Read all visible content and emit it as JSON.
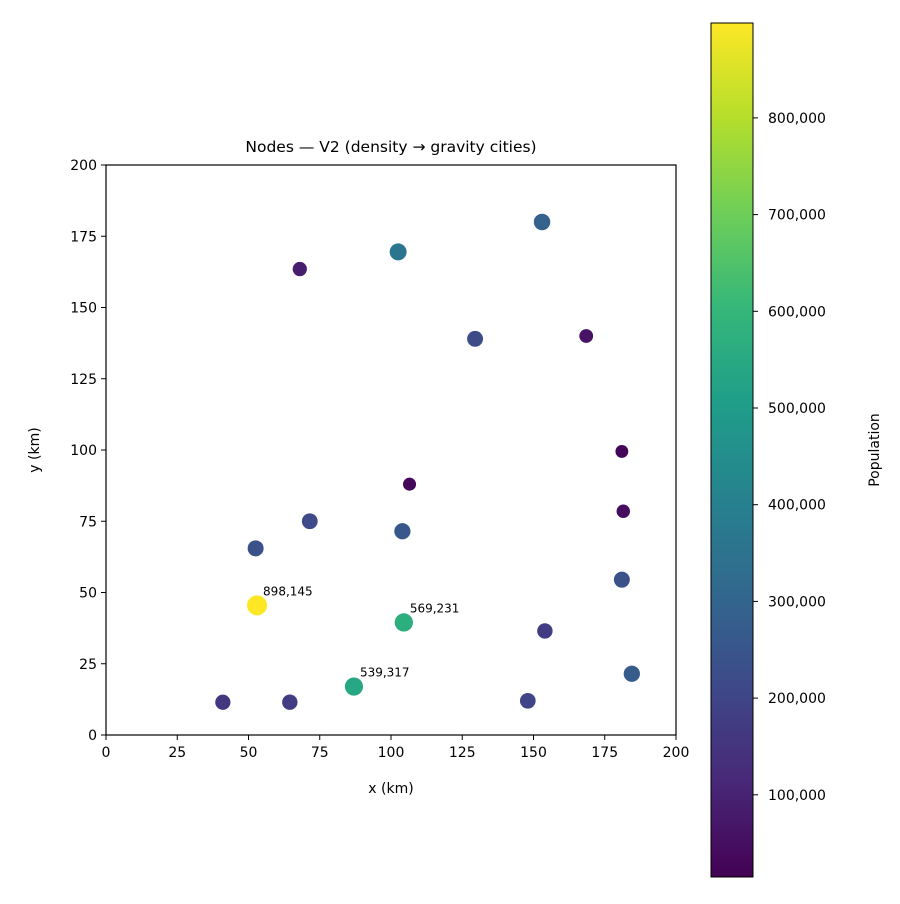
{
  "chart_data": {
    "type": "scatter",
    "title": "Nodes — V2 (density → gravity cities)",
    "xlabel": "x (km)",
    "ylabel": "y (km)",
    "xlim": [
      0,
      200
    ],
    "ylim": [
      0,
      200
    ],
    "xticks": [
      0,
      25,
      50,
      75,
      100,
      125,
      150,
      175,
      200
    ],
    "yticks": [
      0,
      25,
      50,
      75,
      100,
      125,
      150,
      175,
      200
    ],
    "grid": false,
    "colormap": "viridis",
    "colorbar": {
      "label": "Population",
      "min": 15000,
      "max": 898145,
      "ticks": [
        100000,
        200000,
        300000,
        400000,
        500000,
        600000,
        700000,
        800000
      ],
      "tick_labels": [
        "100,000",
        "200,000",
        "300,000",
        "400,000",
        "500,000",
        "600,000",
        "700,000",
        "800,000"
      ]
    },
    "points": [
      {
        "x": 53,
        "y": 45.5,
        "population": 898145,
        "label": "898,145"
      },
      {
        "x": 104.5,
        "y": 39.5,
        "population": 569231,
        "label": "569,231"
      },
      {
        "x": 87,
        "y": 17,
        "population": 539317,
        "label": "539,317"
      },
      {
        "x": 153,
        "y": 180,
        "population": 290000
      },
      {
        "x": 102.5,
        "y": 169.5,
        "population": 360000
      },
      {
        "x": 68,
        "y": 163.5,
        "population": 85000
      },
      {
        "x": 129.5,
        "y": 139,
        "population": 220000
      },
      {
        "x": 168.5,
        "y": 140,
        "population": 60000
      },
      {
        "x": 181,
        "y": 99.5,
        "population": 25000
      },
      {
        "x": 106.5,
        "y": 88,
        "population": 30000
      },
      {
        "x": 181.5,
        "y": 78.5,
        "population": 45000
      },
      {
        "x": 71.5,
        "y": 75,
        "population": 215000
      },
      {
        "x": 104,
        "y": 71.5,
        "population": 260000
      },
      {
        "x": 52.5,
        "y": 65.5,
        "population": 235000
      },
      {
        "x": 181,
        "y": 54.5,
        "population": 235000
      },
      {
        "x": 154,
        "y": 36.5,
        "population": 175000
      },
      {
        "x": 184.5,
        "y": 21.5,
        "population": 270000
      },
      {
        "x": 41,
        "y": 11.5,
        "population": 160000
      },
      {
        "x": 64.5,
        "y": 11.5,
        "population": 175000
      },
      {
        "x": 148,
        "y": 12,
        "population": 200000
      }
    ]
  }
}
